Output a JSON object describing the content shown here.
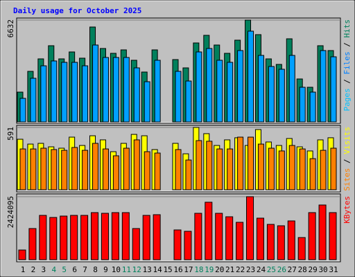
{
  "chart_data": [
    {
      "type": "bar",
      "title": "Daily usage for October 2025",
      "ylim": [
        0,
        6632
      ],
      "yticks": [
        6632
      ],
      "series": [
        {
          "name": "Hits",
          "color": "#00805c",
          "values": [
            1940,
            3293,
            4106,
            4963,
            4106,
            4557,
            4151,
            6181,
            4782,
            4467,
            4692,
            4015,
            3248,
            4692,
            null,
            4060,
            3519,
            5143,
            5640,
            5008,
            4467,
            5324,
            6632,
            5685,
            4106,
            3745,
            5414,
            2797,
            2256,
            4963,
            4647
          ]
        },
        {
          "name": "Files",
          "color": "#00a0ff",
          "values": [
            1534,
            2842,
            3654,
            3970,
            3880,
            3880,
            3654,
            5008,
            4196,
            4196,
            4196,
            3519,
            2617,
            4015,
            null,
            3293,
            2662,
            4557,
            4782,
            4015,
            3880,
            4647,
            5910,
            4331,
            3609,
            3429,
            4331,
            2256,
            1940,
            4647,
            4241
          ]
        }
      ],
      "legend": [
        {
          "name": "Pages",
          "color": "#00c0ff"
        },
        {
          "name": "Files",
          "color": "#0080ff"
        },
        {
          "name": "Hits",
          "color": "#00805c"
        }
      ],
      "legend_separator": "/"
    },
    {
      "type": "bar",
      "ylim": [
        0,
        591
      ],
      "yticks": [
        591
      ],
      "series": [
        {
          "name": "Visits",
          "color": "#ffff00",
          "values": [
            479,
            433,
            440,
            407,
            394,
            499,
            420,
            512,
            473,
            361,
            440,
            525,
            512,
            381,
            null,
            440,
            341,
            591,
            532,
            420,
            473,
            493,
            420,
            571,
            453,
            420,
            486,
            407,
            368,
            473,
            493
          ]
        },
        {
          "name": "Sites",
          "color": "#ff8000",
          "values": [
            387,
            387,
            394,
            381,
            374,
            401,
            374,
            440,
            387,
            322,
            394,
            473,
            361,
            348,
            null,
            381,
            282,
            466,
            460,
            387,
            387,
            499,
            499,
            433,
            394,
            368,
            420,
            387,
            295,
            374,
            394
          ]
        }
      ],
      "legend": [
        {
          "name": "Sites",
          "color": "#ff8000"
        },
        {
          "name": "Visits",
          "color": "#ffff00"
        }
      ],
      "legend_separator": "/"
    },
    {
      "type": "bar",
      "ylim": [
        0,
        2424095
      ],
      "yticks": [
        2424095
      ],
      "series": [
        {
          "name": "KBytes",
          "color": "#ff0000",
          "values": [
            372937,
            1198718,
            1704834,
            1624919,
            1678196,
            1704834,
            1704834,
            1811385,
            1784747,
            1811385,
            1811385,
            1198718,
            1704834,
            1731472,
            null,
            1145443,
            1092167,
            1784747,
            2210968,
            1784747,
            1651557,
            1438467,
            2424095,
            1598294,
            1358553,
            1305277,
            1491737,
            852424,
            1811385,
            2104417,
            1811385
          ]
        }
      ],
      "legend": [
        {
          "name": "KBytes",
          "color": "#ff0000"
        }
      ],
      "categories": [
        "1",
        "2",
        "3",
        "4",
        "5",
        "6",
        "7",
        "8",
        "9",
        "10",
        "11",
        "12",
        "13",
        "14",
        "15",
        "16",
        "17",
        "18",
        "19",
        "20",
        "21",
        "22",
        "23",
        "24",
        "25",
        "26",
        "27",
        "28",
        "29",
        "30",
        "31"
      ],
      "category_colors": [
        "#000000",
        "#000000",
        "#000000",
        "#00805c",
        "#00805c",
        "#000000",
        "#000000",
        "#000000",
        "#000000",
        "#000000",
        "#00805c",
        "#00805c",
        "#000000",
        "#000000",
        "#000000",
        "#000000",
        "#000000",
        "#00805c",
        "#00805c",
        "#000000",
        "#000000",
        "#000000",
        "#000000",
        "#000000",
        "#00805c",
        "#00805c",
        "#000000",
        "#000000",
        "#000000",
        "#000000",
        "#000000"
      ]
    }
  ]
}
